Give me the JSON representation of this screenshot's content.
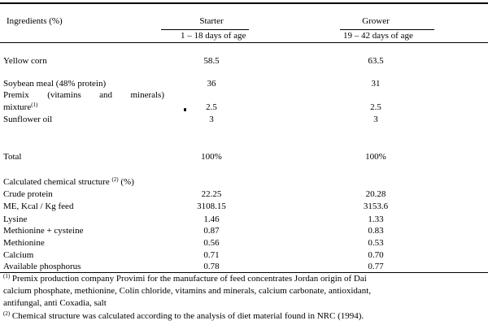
{
  "header": {
    "ingredients_label": "Ingredients (%)",
    "starter_label": "Starter",
    "starter_days": "1 – 18 days of age",
    "grower_label": "Grower",
    "grower_days": "19 – 42 days of age"
  },
  "rows": {
    "yellow_corn": {
      "label": "Yellow corn",
      "starter": "58.5",
      "grower": "63.5"
    },
    "soybean_meal": {
      "label": "Soybean meal (48% protein)",
      "starter": "36",
      "grower": "31"
    },
    "premix": {
      "label_line1_a": "Premix",
      "label_line1_b": "(vitamins",
      "label_line1_c": "and",
      "label_line1_d": "minerals)",
      "label_line2": "mixture",
      "note_mark": "(1)",
      "starter": "2.5",
      "grower": "2.5"
    },
    "sunflower_oil": {
      "label": "Sunflower oil",
      "starter": "3",
      "grower": "3"
    },
    "total": {
      "label": "Total",
      "starter": "100%",
      "grower": "100%"
    }
  },
  "chemical": {
    "heading": "Calculated chemical structure",
    "heading_mark": "(2)",
    "heading_suffix": "(%)",
    "items": [
      {
        "label": "Crude protein",
        "starter": "22.25",
        "grower": "20.28"
      },
      {
        "label": "ME, Kcal / Kg feed",
        "starter": "3108.15",
        "grower": "3153.6"
      },
      {
        "label": "Lysine",
        "starter": "1.46",
        "grower": "1.33"
      },
      {
        "label": "Methionine + cysteine",
        "starter": "0.87",
        "grower": "0.83"
      },
      {
        "label": "Methionine",
        "starter": "0.56",
        "grower": "0.53"
      },
      {
        "label": "Calcium",
        "starter": "0.71",
        "grower": "0.70"
      },
      {
        "label": "Available phosphorus",
        "starter": "0.78",
        "grower": "0.77"
      }
    ]
  },
  "footnotes": {
    "note1_mark": "(1)",
    "note1_line1": "Premix production company Provimi for the manufacture of feed concentrates Jordan origin of Dai",
    "note1_line2": "calcium phosphate, methionine, Colin chloride, vitamins and minerals, calcium carbonate, antioxidant,",
    "note1_line3": "antifungal, anti Coxadia, salt",
    "note2_mark": "(2)",
    "note2_text": "Chemical structure was calculated according to the analysis of diet material found in NRC (1994)."
  }
}
